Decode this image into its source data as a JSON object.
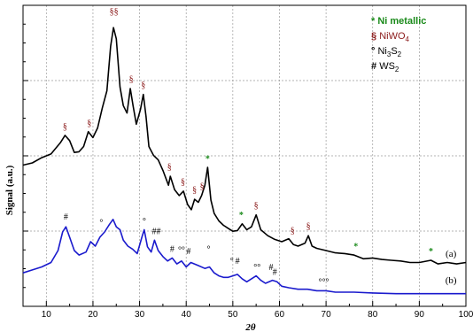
{
  "chart_data": {
    "type": "line",
    "xlabel": "2θ",
    "ylabel": "Signal (a.u.)",
    "xlim": [
      5,
      100
    ],
    "x_ticks": [
      10,
      20,
      30,
      40,
      50,
      60,
      70,
      80,
      90,
      100
    ],
    "y_tick_labels": "none",
    "grid": true,
    "legend": {
      "placement": "top-right",
      "entries": [
        {
          "symbol": "*",
          "label": "Ni metallic",
          "color": "#1a8a1a"
        },
        {
          "symbol": "§",
          "label": "NiWO",
          "sub": "4",
          "color": "#8b1a1a"
        },
        {
          "symbol": "°",
          "label": "Ni",
          "sub": "3",
          "label2": "S",
          "sub2": "2",
          "color": "#000000"
        },
        {
          "symbol": "#",
          "label": "WS",
          "sub": "2",
          "color": "#000000"
        }
      ]
    },
    "series": [
      {
        "name": "(a)",
        "color": "#000000",
        "points": [
          [
            5,
            145
          ],
          [
            7,
            148
          ],
          [
            9,
            155
          ],
          [
            11,
            160
          ],
          [
            13,
            175
          ],
          [
            14,
            185
          ],
          [
            15,
            178
          ],
          [
            16,
            162
          ],
          [
            17,
            163
          ],
          [
            18,
            170
          ],
          [
            19,
            190
          ],
          [
            20,
            182
          ],
          [
            21,
            195
          ],
          [
            22,
            222
          ],
          [
            23,
            245
          ],
          [
            23.8,
            305
          ],
          [
            24.4,
            330
          ],
          [
            25,
            315
          ],
          [
            25.8,
            250
          ],
          [
            26.5,
            225
          ],
          [
            27.3,
            215
          ],
          [
            28,
            248
          ],
          [
            28.6,
            225
          ],
          [
            29.3,
            200
          ],
          [
            30.2,
            220
          ],
          [
            30.8,
            240
          ],
          [
            31.4,
            210
          ],
          [
            32,
            170
          ],
          [
            33,
            158
          ],
          [
            34,
            152
          ],
          [
            35,
            138
          ],
          [
            36.2,
            118
          ],
          [
            36.6,
            130
          ],
          [
            37.5,
            112
          ],
          [
            38.5,
            104
          ],
          [
            39.4,
            110
          ],
          [
            40.3,
            92
          ],
          [
            41.1,
            85
          ],
          [
            41.8,
            99
          ],
          [
            42.6,
            95
          ],
          [
            43.3,
            104
          ],
          [
            44,
            118
          ],
          [
            44.6,
            142
          ],
          [
            45.3,
            98
          ],
          [
            46,
            80
          ],
          [
            47,
            70
          ],
          [
            48,
            64
          ],
          [
            49,
            60
          ],
          [
            50,
            56
          ],
          [
            51,
            57
          ],
          [
            52,
            66
          ],
          [
            53,
            58
          ],
          [
            54,
            62
          ],
          [
            55,
            78
          ],
          [
            56,
            58
          ],
          [
            57.5,
            50
          ],
          [
            59,
            45
          ],
          [
            60.5,
            42
          ],
          [
            62,
            46
          ],
          [
            63,
            38
          ],
          [
            64,
            36
          ],
          [
            65.5,
            40
          ],
          [
            66.2,
            50
          ],
          [
            67,
            36
          ],
          [
            68,
            33
          ],
          [
            70,
            30
          ],
          [
            72,
            27
          ],
          [
            74,
            26
          ],
          [
            76,
            24
          ],
          [
            78,
            19
          ],
          [
            80,
            20
          ],
          [
            82,
            18
          ],
          [
            84,
            17
          ],
          [
            86,
            16
          ],
          [
            88,
            14
          ],
          [
            90,
            14
          ],
          [
            92.5,
            17
          ],
          [
            94,
            12
          ],
          [
            96,
            14
          ],
          [
            98,
            12
          ],
          [
            100,
            14
          ]
        ]
      },
      {
        "name": "(b)",
        "color": "#1a1acd",
        "points": [
          [
            5,
            0
          ],
          [
            7,
            4
          ],
          [
            9,
            8
          ],
          [
            11,
            14
          ],
          [
            12.5,
            30
          ],
          [
            13.5,
            55
          ],
          [
            14.2,
            62
          ],
          [
            15,
            48
          ],
          [
            16,
            30
          ],
          [
            17,
            24
          ],
          [
            18.5,
            28
          ],
          [
            19.5,
            42
          ],
          [
            20.5,
            36
          ],
          [
            21.5,
            48
          ],
          [
            22.5,
            55
          ],
          [
            23.5,
            65
          ],
          [
            24.3,
            72
          ],
          [
            25,
            62
          ],
          [
            25.8,
            58
          ],
          [
            26.5,
            44
          ],
          [
            27.5,
            36
          ],
          [
            28.5,
            32
          ],
          [
            29.5,
            26
          ],
          [
            30.5,
            48
          ],
          [
            31,
            58
          ],
          [
            31.7,
            35
          ],
          [
            32.5,
            28
          ],
          [
            33.2,
            44
          ],
          [
            34,
            30
          ],
          [
            35,
            22
          ],
          [
            36,
            16
          ],
          [
            37,
            20
          ],
          [
            38,
            12
          ],
          [
            39,
            16
          ],
          [
            40,
            8
          ],
          [
            41,
            14
          ],
          [
            42.5,
            10
          ],
          [
            44,
            6
          ],
          [
            45,
            8
          ],
          [
            46,
            0
          ],
          [
            47,
            -4
          ],
          [
            48,
            -6
          ],
          [
            49,
            -6
          ],
          [
            50,
            -4
          ],
          [
            51,
            -2
          ],
          [
            52,
            -8
          ],
          [
            53,
            -12
          ],
          [
            55,
            -4
          ],
          [
            56,
            -10
          ],
          [
            57,
            -14
          ],
          [
            58.5,
            -10
          ],
          [
            59.5,
            -12
          ],
          [
            60.5,
            -18
          ],
          [
            62,
            -20
          ],
          [
            64,
            -22
          ],
          [
            66,
            -22
          ],
          [
            68,
            -24
          ],
          [
            70,
            -24
          ],
          [
            72,
            -26
          ],
          [
            76,
            -26
          ],
          [
            80,
            -27
          ],
          [
            85,
            -28
          ],
          [
            90,
            -28
          ],
          [
            95,
            -28
          ],
          [
            100,
            -28
          ]
        ]
      }
    ],
    "annotations": [
      {
        "text": "§§",
        "x": 24.5,
        "y": 348,
        "color": "#8b1a1a"
      },
      {
        "text": "§",
        "x": 14,
        "y": 193,
        "color": "#8b1a1a"
      },
      {
        "text": "§",
        "x": 19.2,
        "y": 198,
        "color": "#8b1a1a"
      },
      {
        "text": "§",
        "x": 28.2,
        "y": 257,
        "color": "#8b1a1a"
      },
      {
        "text": "§",
        "x": 30.8,
        "y": 249,
        "color": "#8b1a1a"
      },
      {
        "text": "§",
        "x": 36.4,
        "y": 139,
        "color": "#8b1a1a"
      },
      {
        "text": "§",
        "x": 39.3,
        "y": 119,
        "color": "#8b1a1a"
      },
      {
        "text": "§",
        "x": 41.8,
        "y": 108,
        "color": "#8b1a1a"
      },
      {
        "text": "§",
        "x": 43.4,
        "y": 113,
        "color": "#8b1a1a"
      },
      {
        "text": "§",
        "x": 55,
        "y": 87,
        "color": "#8b1a1a"
      },
      {
        "text": "§",
        "x": 62.8,
        "y": 53,
        "color": "#8b1a1a"
      },
      {
        "text": "§",
        "x": 66.2,
        "y": 59,
        "color": "#8b1a1a"
      },
      {
        "text": "*",
        "x": 44.6,
        "y": 150,
        "color": "#1a8a1a"
      },
      {
        "text": "*",
        "x": 51.8,
        "y": 74,
        "color": "#1a8a1a"
      },
      {
        "text": "*",
        "x": 76.4,
        "y": 32,
        "color": "#1a8a1a"
      },
      {
        "text": "*",
        "x": 92.5,
        "y": 25,
        "color": "#1a8a1a"
      },
      {
        "text": "#",
        "x": 14.2,
        "y": 72,
        "color": "#000000"
      },
      {
        "text": "°",
        "x": 21.8,
        "y": 64,
        "color": "#000000"
      },
      {
        "text": "°",
        "x": 31,
        "y": 66,
        "color": "#000000"
      },
      {
        "text": "##",
        "x": 33.6,
        "y": 52,
        "color": "#000000"
      },
      {
        "text": "#",
        "x": 37,
        "y": 28,
        "color": "#000000"
      },
      {
        "text": "°°",
        "x": 39,
        "y": 27,
        "color": "#000000"
      },
      {
        "text": "#",
        "x": 40.5,
        "y": 25,
        "color": "#000000"
      },
      {
        "text": "°",
        "x": 44.8,
        "y": 28,
        "color": "#000000"
      },
      {
        "text": "°",
        "x": 49.8,
        "y": 12,
        "color": "#000000"
      },
      {
        "text": "#",
        "x": 51,
        "y": 12,
        "color": "#000000"
      },
      {
        "text": "°°",
        "x": 55.2,
        "y": 4,
        "color": "#000000"
      },
      {
        "text": "#",
        "x": 58.2,
        "y": 4,
        "color": "#000000"
      },
      {
        "text": "#",
        "x": 59,
        "y": -3,
        "color": "#000000"
      },
      {
        "text": "°°°",
        "x": 69.5,
        "y": -16,
        "color": "#000000"
      }
    ],
    "curve_labels": [
      {
        "text": "(a)",
        "x": 96.8,
        "y": 22
      },
      {
        "text": "(b)",
        "x": 96.8,
        "y": -14
      }
    ]
  }
}
